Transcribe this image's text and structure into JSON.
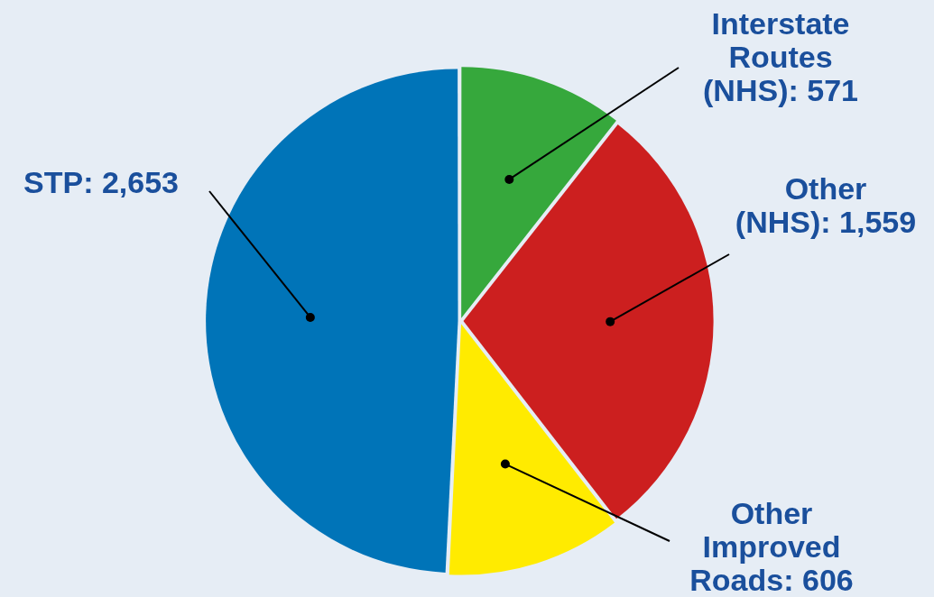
{
  "chart_data": {
    "type": "pie",
    "categories": [
      "Interstate Routes (NHS)",
      "Other (NHS)",
      "Other Improved Roads",
      "STP"
    ],
    "values": [
      571,
      1559,
      606,
      2653
    ],
    "value_labels": [
      "571",
      "1,559",
      "606",
      "2,653"
    ],
    "colors": [
      "#36a83c",
      "#cc1f1f",
      "#ffeb00",
      "#0074b8"
    ],
    "legend": false
  }
}
